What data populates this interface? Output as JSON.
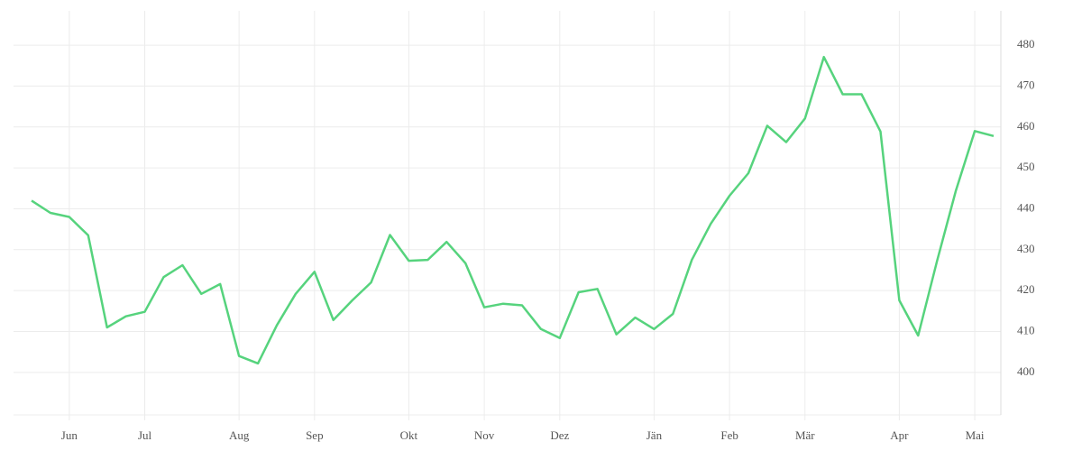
{
  "chart_data": {
    "type": "line",
    "categories": [
      null,
      null,
      "Jun",
      null,
      null,
      null,
      "Jul",
      null,
      null,
      null,
      null,
      "Aug",
      null,
      null,
      null,
      "Sep",
      null,
      null,
      null,
      null,
      "Okt",
      null,
      null,
      null,
      "Nov",
      null,
      null,
      null,
      "Dez",
      null,
      null,
      null,
      null,
      "Jän",
      null,
      null,
      null,
      "Feb",
      null,
      null,
      null,
      "Mär",
      null,
      null,
      null,
      null,
      "Apr",
      null,
      null,
      null,
      "Mai",
      null
    ],
    "series": [
      {
        "color": "#56d37d",
        "values": [
          442,
          439,
          438,
          433.5,
          411,
          413.7,
          414.8,
          423.3,
          426.2,
          419.2,
          421.6,
          404,
          402.2,
          411.5,
          419.2,
          424.6,
          412.8,
          417.6,
          422,
          433.6,
          427.3,
          427.5,
          431.9,
          426.7,
          415.9,
          416.8,
          416.4,
          410.6,
          408.4,
          419.6,
          420.4,
          409.3,
          413.4,
          410.6,
          414.3,
          427.5,
          436.3,
          443.2,
          448.7,
          460.3,
          456.3,
          462.1,
          477.1,
          468,
          468,
          458.9,
          417.6,
          409,
          427.2,
          444.5,
          459,
          457.8
        ]
      }
    ],
    "ylim": [
      389.6,
      488.4
    ],
    "yticks": [
      400,
      410,
      420,
      430,
      440,
      450,
      460,
      470,
      480
    ],
    "grid": true
  }
}
